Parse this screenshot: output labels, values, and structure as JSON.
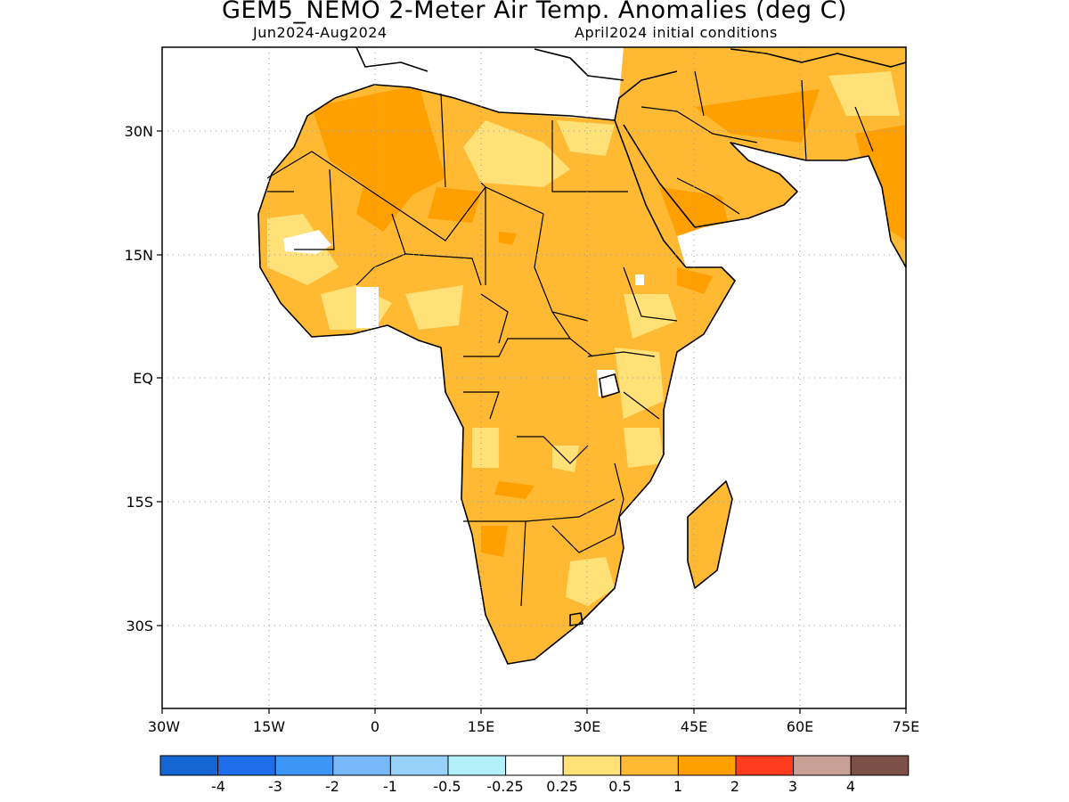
{
  "title": "GEM5_NEMO 2-Meter Air Temp. Anomalies (deg C)",
  "period": "Jun2024-Aug2024",
  "initial_conditions": "April2024 initial conditions",
  "lat_labels": [
    "30N",
    "15N",
    "EQ",
    "15S",
    "30S"
  ],
  "lon_labels": [
    "30W",
    "15W",
    "0",
    "15E",
    "30E",
    "45E",
    "60E",
    "75E"
  ],
  "colorbar": {
    "colors": [
      "#1464d2",
      "#1e6eeb",
      "#3c96f5",
      "#78b9fa",
      "#96d2fa",
      "#b4f0fa",
      "#ffffff",
      "#ffe178",
      "#ffb932",
      "#ffa000",
      "#ff3c1e",
      "#c8a096",
      "#7c5047"
    ],
    "labels": [
      "-4",
      "-3",
      "-2",
      "-1",
      "-0.5",
      "-0.25",
      "0.25",
      "0.5",
      "1",
      "2",
      "3",
      "4"
    ]
  },
  "map_colors": {
    "weak": "#ffe178",
    "moderate": "#ffb932",
    "strong": "#ffa000",
    "coast": "#000000",
    "grid": "#999999"
  }
}
